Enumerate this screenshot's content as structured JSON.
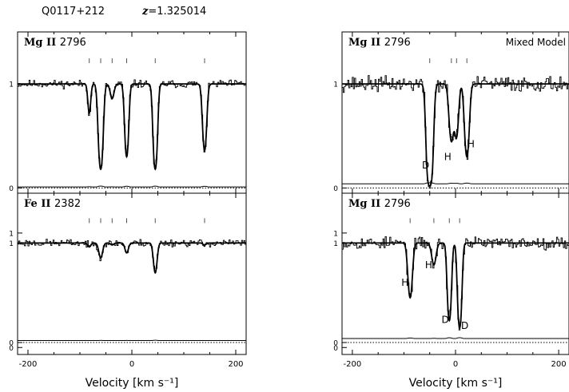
{
  "header": {
    "qso": "Q0117+212",
    "redshift_symbol": "z",
    "redshift_value": "=1.325014"
  },
  "chart_data": [
    {
      "type": "line",
      "panel": "top-left",
      "ion": "Mg",
      "ion_stage": "II",
      "wavelength": "2796",
      "annotation": "",
      "xlim": [
        -220,
        220
      ],
      "ylim": [
        -0.05,
        1.5
      ],
      "y_ticks": [
        {
          "v": 0,
          "label": "0"
        },
        {
          "v": 1,
          "label": "1"
        }
      ],
      "x_ticks": [
        -200,
        0,
        200
      ],
      "x_tick_labels": [
        "",
        "",
        ""
      ],
      "xlabel": "",
      "component_ticks": [
        -82,
        -60,
        -38,
        -10,
        45,
        140
      ],
      "components": [
        {
          "v": -82,
          "depth": 0.28,
          "sigma": 2.6
        },
        {
          "v": -60,
          "depth": 0.82,
          "sigma": 3.6
        },
        {
          "v": -38,
          "depth": 0.14,
          "sigma": 3.5
        },
        {
          "v": -10,
          "depth": 0.7,
          "sigma": 3.2
        },
        {
          "v": 45,
          "depth": 0.82,
          "sigma": 3.3
        },
        {
          "v": 140,
          "depth": 0.64,
          "sigma": 3.4
        }
      ],
      "error_level": 0.01,
      "noise_amp": 0.03,
      "seed": 11,
      "labels": []
    },
    {
      "type": "line",
      "panel": "bottom-left",
      "ion": "Fe",
      "ion_stage": "II",
      "wavelength": "2382",
      "annotation": "",
      "xlim": [
        -220,
        220
      ],
      "ylim": [
        -0.12,
        1.5
      ],
      "y_ticks": [
        {
          "v": -0.05,
          "label": "0"
        },
        {
          "v": 0,
          "label": "0"
        },
        {
          "v": 1,
          "label": "1"
        },
        {
          "v": 1.1,
          "label": "1"
        }
      ],
      "x_ticks": [
        -200,
        0,
        200
      ],
      "x_tick_labels": [
        "-200",
        "0",
        "200"
      ],
      "xlabel": "Velocity [km s⁻¹]",
      "component_ticks": [
        -82,
        -60,
        -38,
        -10,
        45,
        140
      ],
      "components": [
        {
          "v": -82,
          "depth": 0.04,
          "sigma": 3.0
        },
        {
          "v": -60,
          "depth": 0.15,
          "sigma": 3.5
        },
        {
          "v": -38,
          "depth": 0.02,
          "sigma": 3.0
        },
        {
          "v": -10,
          "depth": 0.1,
          "sigma": 3.2
        },
        {
          "v": 45,
          "depth": 0.3,
          "sigma": 3.3
        },
        {
          "v": 140,
          "depth": 0.02,
          "sigma": 3.0
        }
      ],
      "error_level": 0.02,
      "noise_amp": 0.03,
      "seed": 23,
      "labels": []
    },
    {
      "type": "line",
      "panel": "top-right",
      "ion": "Mg",
      "ion_stage": "II",
      "wavelength": "2796",
      "annotation": "Mixed Model",
      "xlim": [
        -220,
        220
      ],
      "ylim": [
        -0.05,
        1.5
      ],
      "y_ticks": [
        {
          "v": 0,
          "label": "0"
        },
        {
          "v": 1,
          "label": "1"
        }
      ],
      "x_ticks": [
        -200,
        0,
        200
      ],
      "x_tick_labels": [
        "",
        "",
        ""
      ],
      "xlabel": "",
      "component_ticks": [
        -50,
        -8,
        2,
        22
      ],
      "components": [
        {
          "v": -50,
          "depth": 0.98,
          "sigma": 4.2
        },
        {
          "v": -8,
          "depth": 0.55,
          "sigma": 4.0
        },
        {
          "v": 2,
          "depth": 0.5,
          "sigma": 3.5
        },
        {
          "v": 22,
          "depth": 0.7,
          "sigma": 3.8
        }
      ],
      "error_level": 0.04,
      "noise_amp": 0.06,
      "seed": 37,
      "labels": [
        {
          "text": "D",
          "v": -58,
          "f": 0.22
        },
        {
          "text": "H",
          "v": -15,
          "f": 0.3
        },
        {
          "text": "H",
          "v": 30,
          "f": 0.42
        }
      ]
    },
    {
      "type": "line",
      "panel": "bottom-right",
      "ion": "Mg",
      "ion_stage": "II",
      "wavelength": "2796",
      "annotation": "",
      "xlim": [
        -220,
        220
      ],
      "ylim": [
        -0.12,
        1.5
      ],
      "y_ticks": [
        {
          "v": -0.05,
          "label": "0"
        },
        {
          "v": 0,
          "label": "0"
        },
        {
          "v": 1,
          "label": "1"
        },
        {
          "v": 1.1,
          "label": "1"
        }
      ],
      "x_ticks": [
        -200,
        0,
        200
      ],
      "x_tick_labels": [
        "-200",
        "0",
        "200"
      ],
      "xlabel": "Velocity [km s⁻¹]",
      "component_ticks": [
        -88,
        -42,
        -12,
        8
      ],
      "components": [
        {
          "v": -88,
          "depth": 0.55,
          "sigma": 3.8
        },
        {
          "v": -42,
          "depth": 0.22,
          "sigma": 4.0
        },
        {
          "v": -12,
          "depth": 0.78,
          "sigma": 3.2
        },
        {
          "v": 8,
          "depth": 0.85,
          "sigma": 3.2
        }
      ],
      "error_level": 0.04,
      "noise_amp": 0.05,
      "seed": 53,
      "labels": [
        {
          "text": "H",
          "v": -98,
          "f": 0.6
        },
        {
          "text": "H",
          "v": -52,
          "f": 0.78
        },
        {
          "text": "D",
          "v": -20,
          "f": 0.23
        },
        {
          "text": "D",
          "v": 18,
          "f": 0.17
        }
      ]
    }
  ]
}
